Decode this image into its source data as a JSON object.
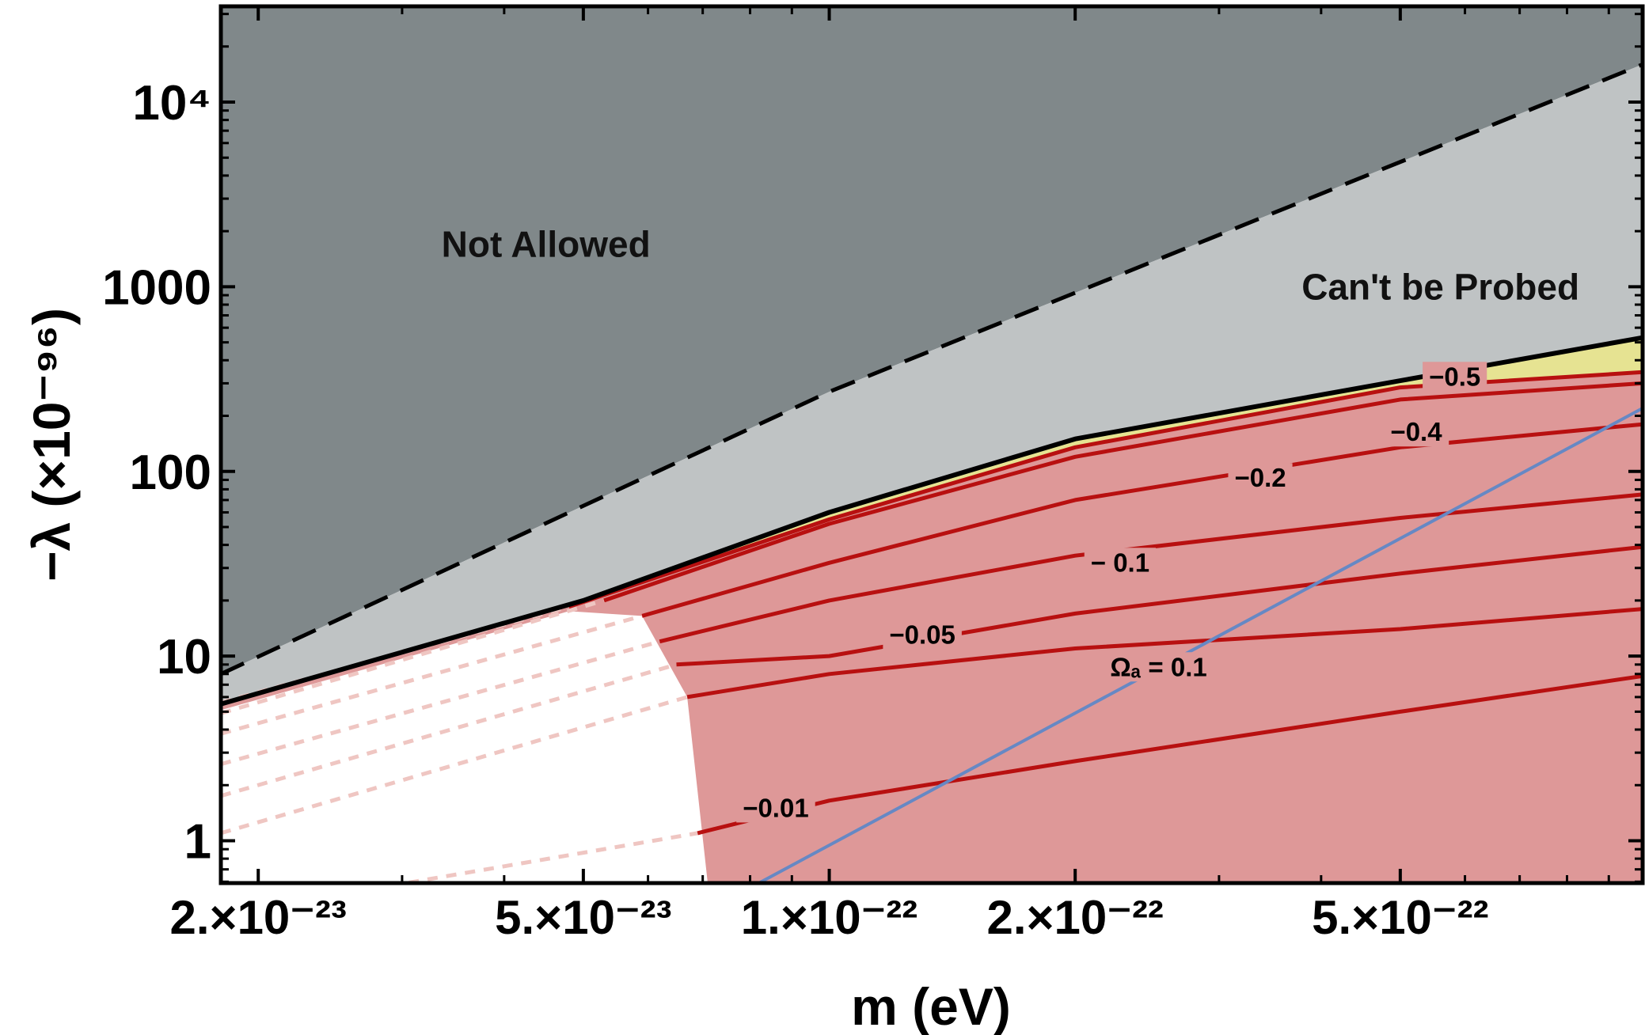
{
  "chart_data": {
    "type": "contour",
    "xlabel": "m (eV)",
    "ylabel": "−λ (×10⁻⁹⁶)",
    "xscale": "log",
    "yscale": "log",
    "xlim": [
      1.8e-23,
      9.9e-22
    ],
    "ylim": [
      0.59,
      33000
    ],
    "x_ticks": [
      {
        "value": 2e-23,
        "label": "2.×10⁻²³"
      },
      {
        "value": 5e-23,
        "label": "5.×10⁻²³"
      },
      {
        "value": 1e-22,
        "label": "1.×10⁻²²"
      },
      {
        "value": 2e-22,
        "label": "2.×10⁻²²"
      },
      {
        "value": 5e-22,
        "label": "5.×10⁻²²"
      }
    ],
    "y_ticks": [
      {
        "value": 1,
        "label": "1"
      },
      {
        "value": 10,
        "label": "10"
      },
      {
        "value": 100,
        "label": "100"
      },
      {
        "value": 1000,
        "label": "1000"
      },
      {
        "value": 10000,
        "label": "10⁴"
      }
    ],
    "colors": {
      "not_allowed": "#80888a",
      "cant_probe": "#bfc3c4",
      "yellow_band": "#e6e392",
      "allowed": "#de9898",
      "excluded_white": "#ffffff",
      "contour": "#b81010",
      "contour_faded": "#efc6c2",
      "omega_line": "#6688c4",
      "boundary": "#000000"
    },
    "regions": [
      {
        "name": "Not Allowed",
        "label": "Not Allowed",
        "label_at": {
          "x": 4.5e-23,
          "y": 1700
        }
      },
      {
        "name": "Can't be Probed",
        "label": "Can't be Probed",
        "label_at": {
          "x": 5.6e-22,
          "y": 1000
        }
      }
    ],
    "dashed_boundary": {
      "name": "not-allowed boundary",
      "points": [
        [
          1.8e-23,
          8
        ],
        [
          1e-22,
          270
        ],
        [
          9.9e-22,
          16000
        ]
      ]
    },
    "solid_boundary": {
      "name": "probe limit",
      "points": [
        [
          1.8e-23,
          5.5
        ],
        [
          3e-23,
          10.5
        ],
        [
          5e-23,
          20
        ],
        [
          1e-22,
          60
        ],
        [
          2e-22,
          150
        ],
        [
          5e-22,
          310
        ],
        [
          9.9e-22,
          530
        ]
      ]
    },
    "white_region": [
      [
        1.8e-23,
        5.1
      ],
      [
        4.8e-23,
        17.5
      ],
      [
        5.9e-23,
        16.5
      ],
      [
        6.7e-23,
        6
      ],
      [
        7.1e-23,
        0.59
      ],
      [
        1.8e-23,
        0.59
      ]
    ],
    "contours": [
      {
        "label": "−0.5",
        "points": [
          [
            4.8e-23,
            18.5
          ],
          [
            1e-22,
            55
          ],
          [
            2e-22,
            135
          ],
          [
            5e-22,
            285
          ],
          [
            9.9e-22,
            345
          ]
        ],
        "label_at": {
          "x": 5.83e-22,
          "y": 325
        }
      },
      {
        "label": "−0.4",
        "points": [
          [
            5.3e-23,
            20
          ],
          [
            1e-22,
            52
          ],
          [
            2e-22,
            120
          ],
          [
            5e-22,
            245
          ],
          [
            9.9e-22,
            300
          ]
        ],
        "label_at": {
          "x": 5.23e-22,
          "y": 163
        }
      },
      {
        "label": "−0.2",
        "points": [
          [
            5.9e-23,
            16.5
          ],
          [
            1e-22,
            32
          ],
          [
            2e-22,
            70
          ],
          [
            5e-22,
            135
          ],
          [
            9.9e-22,
            180
          ]
        ],
        "label_at": {
          "x": 3.37e-22,
          "y": 92
        }
      },
      {
        "label": "− 0.1",
        "points": [
          [
            6.2e-23,
            12
          ],
          [
            1e-22,
            20
          ],
          [
            2e-22,
            35
          ],
          [
            5e-22,
            56
          ],
          [
            9.9e-22,
            75
          ]
        ],
        "label_at": {
          "x": 2.27e-22,
          "y": 32
        }
      },
      {
        "label": "−0.05",
        "points": [
          [
            6.5e-23,
            9
          ],
          [
            1e-22,
            10
          ],
          [
            2e-22,
            17
          ],
          [
            5e-22,
            28
          ],
          [
            9.9e-22,
            39
          ]
        ],
        "label_at": {
          "x": 1.3e-22,
          "y": 13
        }
      },
      {
        "label": "",
        "points": [
          [
            6.7e-23,
            6
          ],
          [
            1e-22,
            8
          ],
          [
            2e-22,
            11
          ],
          [
            5e-22,
            14
          ],
          [
            9.9e-22,
            18
          ]
        ],
        "label_at": null
      },
      {
        "label": "−0.01",
        "points": [
          [
            6.9e-23,
            1.1
          ],
          [
            1e-22,
            1.65
          ],
          [
            2e-22,
            2.7
          ],
          [
            5e-22,
            5
          ],
          [
            9.9e-22,
            7.8
          ]
        ],
        "label_at": {
          "x": 8.6e-23,
          "y": 1.5
        }
      }
    ],
    "faded_contours": [
      {
        "points": [
          [
            1.8e-23,
            5.6
          ],
          [
            4.8e-23,
            18.5
          ]
        ]
      },
      {
        "points": [
          [
            1.8e-23,
            4.9
          ],
          [
            5.3e-23,
            20
          ]
        ]
      },
      {
        "points": [
          [
            1.8e-23,
            3.8
          ],
          [
            5.9e-23,
            16.5
          ]
        ]
      },
      {
        "points": [
          [
            1.8e-23,
            2.6
          ],
          [
            6.2e-23,
            12
          ]
        ]
      },
      {
        "points": [
          [
            1.8e-23,
            1.75
          ],
          [
            6.5e-23,
            9
          ]
        ]
      },
      {
        "points": [
          [
            1.8e-23,
            1.1
          ],
          [
            6.7e-23,
            6
          ]
        ]
      },
      {
        "points": [
          [
            2.9e-23,
            0.57
          ],
          [
            6.9e-23,
            1.1
          ]
        ]
      }
    ],
    "omega_line": {
      "label": "Ωₐ = 0.1",
      "points": [
        [
          8.2e-23,
          0.59
        ],
        [
          9.9e-22,
          220
        ]
      ],
      "label_at": {
        "x": 2.53e-22,
        "y": 8.7
      }
    }
  }
}
